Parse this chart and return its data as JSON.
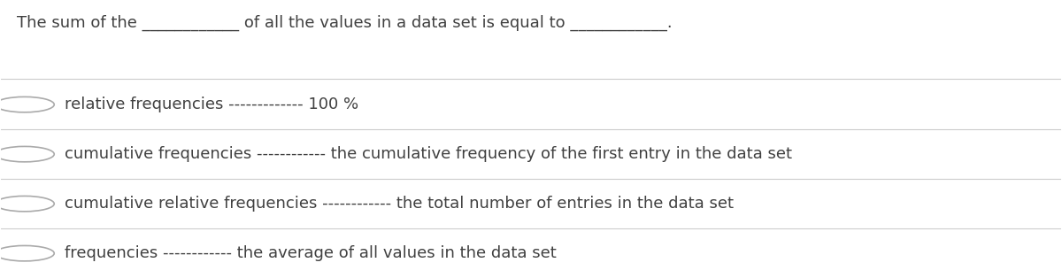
{
  "background_color": "#ffffff",
  "text_color": "#404040",
  "line_color": "#cccccc",
  "question_text": "The sum of the ____________ of all the values in a data set is equal to ____________.",
  "options": [
    {
      "label": "relative frequencies",
      "dashes": "------------- ",
      "answer": "100 %"
    },
    {
      "label": "cumulative frequencies",
      "dashes": "------------ ",
      "answer": "the cumulative frequency of the first entry in the data set"
    },
    {
      "label": "cumulative relative frequencies",
      "dashes": "------------ ",
      "answer": "the total number of entries in the data set"
    },
    {
      "label": "frequencies",
      "dashes": "------------ ",
      "answer": "the average of all values in the data set"
    }
  ],
  "font_size": 13,
  "question_font_size": 13,
  "fig_width": 12.0,
  "fig_height": 3.14
}
